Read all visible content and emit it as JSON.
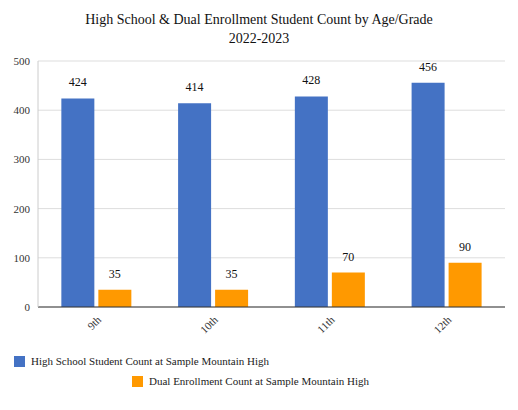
{
  "chart_data": {
    "type": "bar",
    "title": "High School & Dual Enrollment Student Count by Age/Grade",
    "subtitle": "2022-2023",
    "categories": [
      "9th",
      "10th",
      "11th",
      "12th"
    ],
    "series": [
      {
        "name": "High School Student Count at Sample Mountain High",
        "color": "#4472c4",
        "values": [
          424,
          414,
          428,
          456
        ]
      },
      {
        "name": "Dual Enrollment Count at Sample Mountain High",
        "color": "#ff9900",
        "values": [
          35,
          35,
          70,
          90
        ]
      }
    ],
    "ylim": [
      0,
      500
    ],
    "yticks": [
      0,
      100,
      200,
      300,
      400,
      500
    ],
    "grid": true,
    "legend": "bottom",
    "data_labels": true
  }
}
